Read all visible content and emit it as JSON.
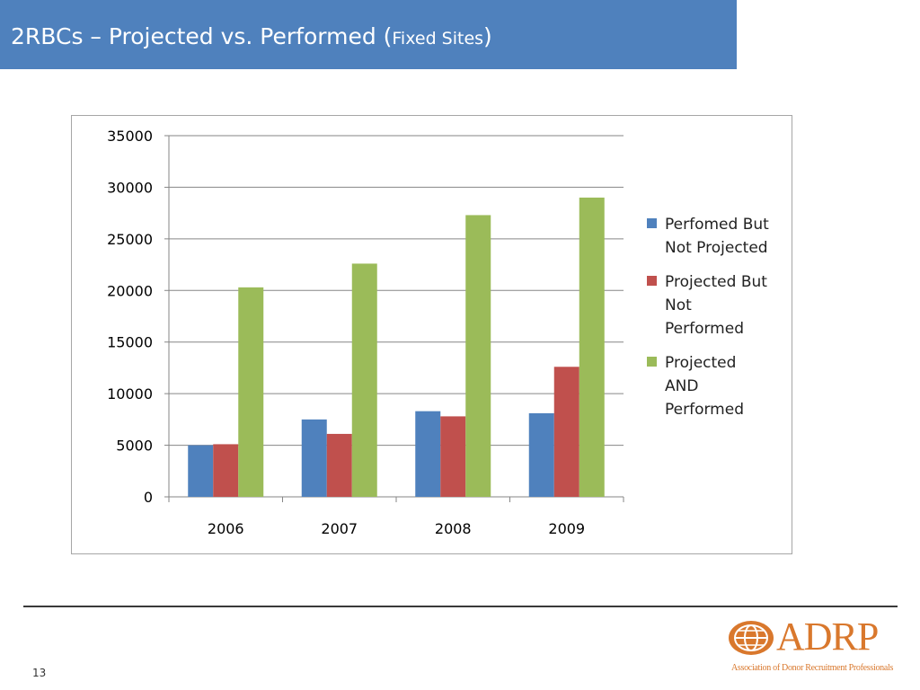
{
  "slide": {
    "title_main": "2RBCs – Projected vs. Performed (",
    "title_small": "Fixed Sites",
    "title_close": ")",
    "page_number": "13",
    "logo_text": "ADRP",
    "logo_subtitle": "Association of Donor Recruitment Professionals"
  },
  "colors": {
    "title_bar": "#4f81bd",
    "series_blue": "#4f81bd",
    "series_red": "#c0504d",
    "series_green": "#9bbb59",
    "logo": "#d9782d"
  },
  "chart_data": {
    "type": "bar",
    "categories": [
      "2006",
      "2007",
      "2008",
      "2009"
    ],
    "series": [
      {
        "name": "Perfomed But Not Projected",
        "values": [
          5000,
          7500,
          8300,
          8100
        ],
        "color": "#4f81bd"
      },
      {
        "name": "Projected But Not Performed",
        "values": [
          5100,
          6100,
          7800,
          12600
        ],
        "color": "#c0504d"
      },
      {
        "name": "Projected AND Performed",
        "values": [
          20300,
          22600,
          27300,
          29000
        ],
        "color": "#9bbb59"
      }
    ],
    "ylim": [
      0,
      35000
    ],
    "yticks": [
      "0",
      "5000",
      "10000",
      "15000",
      "20000",
      "25000",
      "30000",
      "35000"
    ],
    "grid": true,
    "legend_position": "right"
  }
}
